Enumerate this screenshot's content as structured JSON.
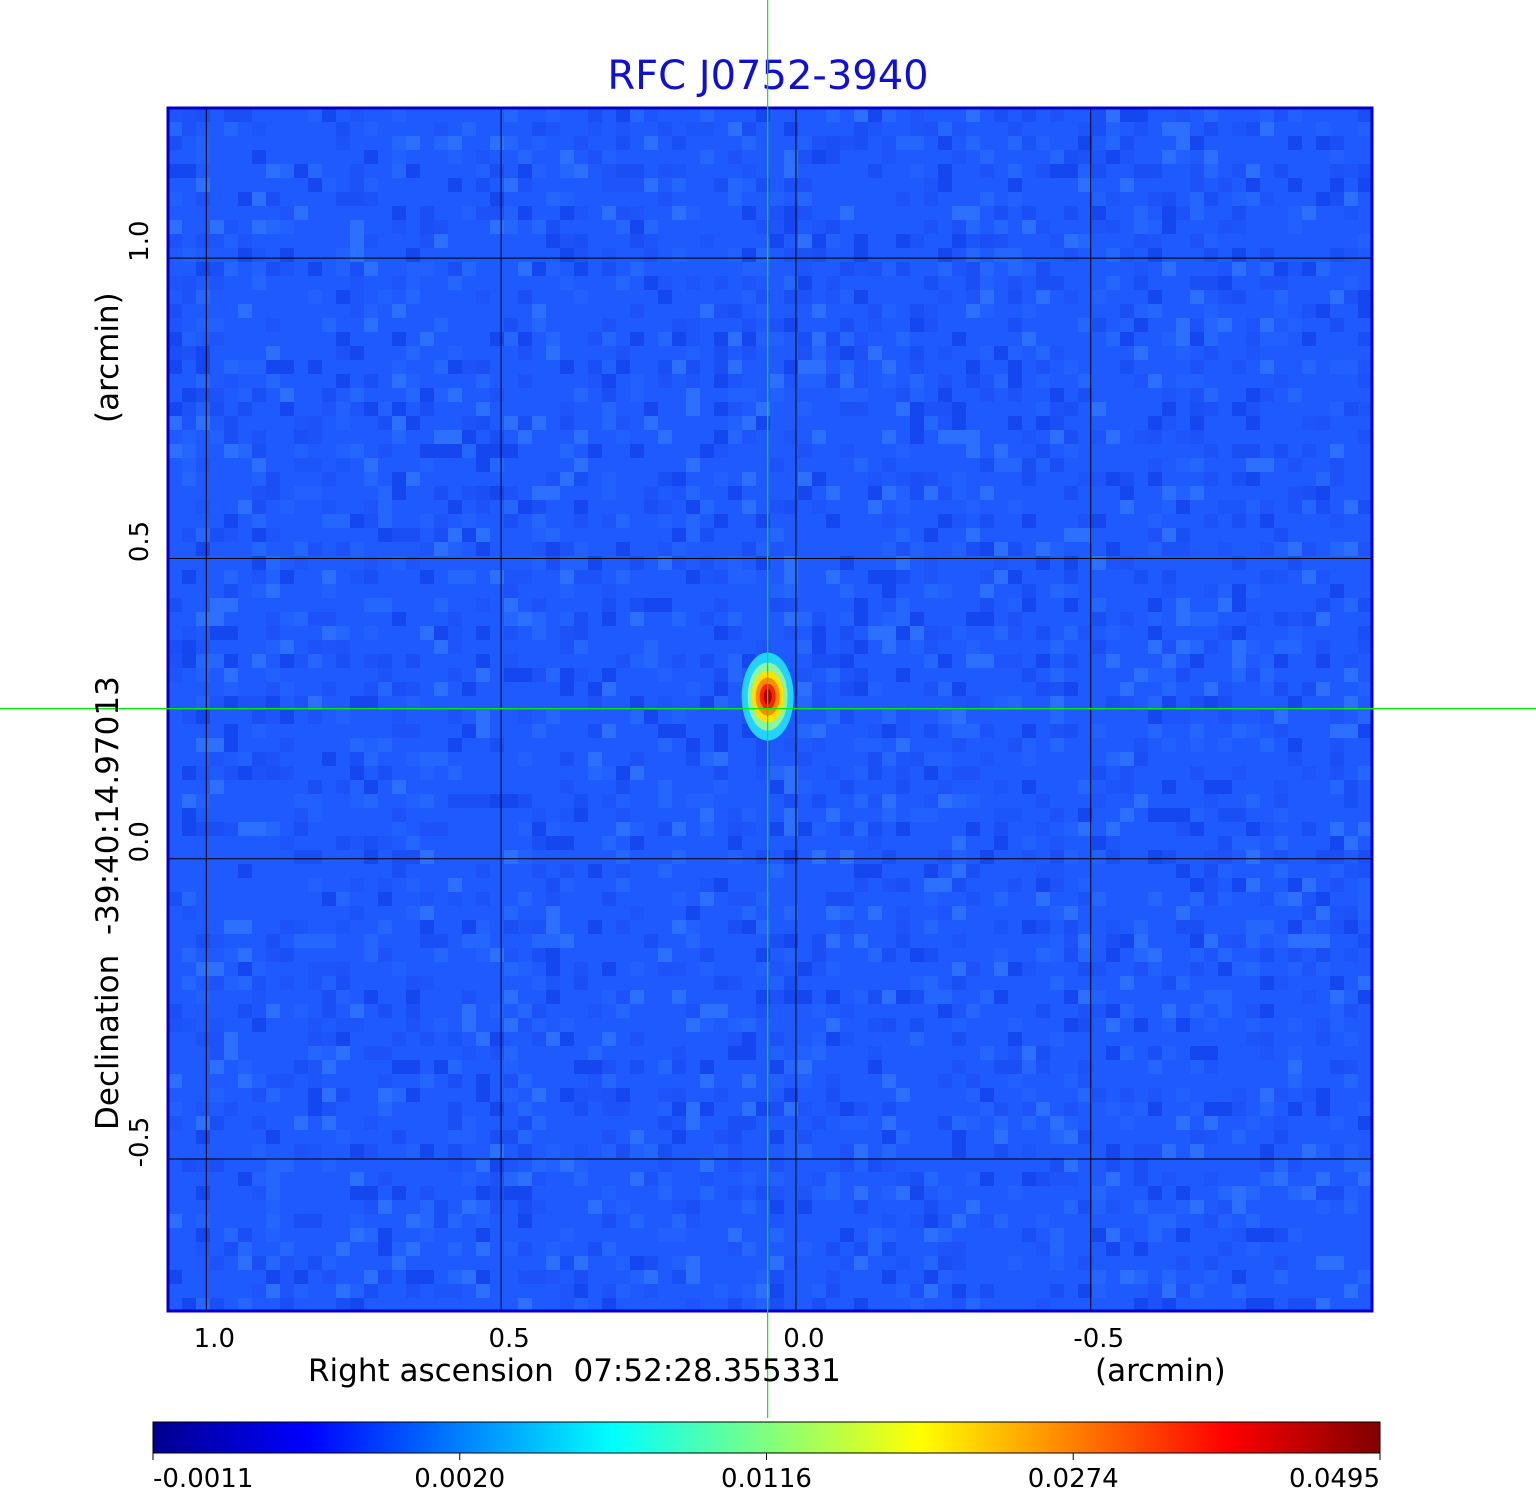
{
  "chart_data": {
    "type": "heatmap",
    "title": "RFC J0752-3940",
    "xlabel": "Right ascension  07:52:28.355331",
    "xunit": "(arcmin)",
    "ylabel": "Declination  -39:40:14.97013",
    "yunit": "(arcmin)",
    "x_reversed": true,
    "xlim": [
      1.065,
      -0.977
    ],
    "ylim": [
      -0.753,
      1.25
    ],
    "x_ticks": [
      {
        "value": 1.0,
        "label": "1.0"
      },
      {
        "value": 0.5,
        "label": "0.5"
      },
      {
        "value": 0.0,
        "label": "0.0"
      },
      {
        "value": -0.5,
        "label": "-0.5"
      }
    ],
    "y_ticks": [
      {
        "value": 1.0,
        "label": "1.0"
      },
      {
        "value": 0.5,
        "label": "0.5"
      },
      {
        "value": 0.0,
        "label": "0.0"
      },
      {
        "value": -0.5,
        "label": "-0.5"
      }
    ],
    "grid": true,
    "crosshair": {
      "x": 0.048,
      "y": 0.25
    },
    "source_peak": {
      "x": 0.048,
      "y": 0.27,
      "value": 0.0495
    },
    "colormap": "jet",
    "colorbar": {
      "ticks": [
        {
          "value": -0.0011,
          "label": "-0.0011"
        },
        {
          "value": 0.002,
          "label": "0.0020"
        },
        {
          "value": 0.0116,
          "label": "0.0116"
        },
        {
          "value": 0.0274,
          "label": "0.0274"
        },
        {
          "value": 0.0495,
          "label": "0.0495"
        }
      ]
    },
    "colors": {
      "title": "#1010d0",
      "frame": "#0000cc",
      "grid": "#000000",
      "crosshair": "#00ee00",
      "background_noise": "#1e5aff"
    }
  }
}
